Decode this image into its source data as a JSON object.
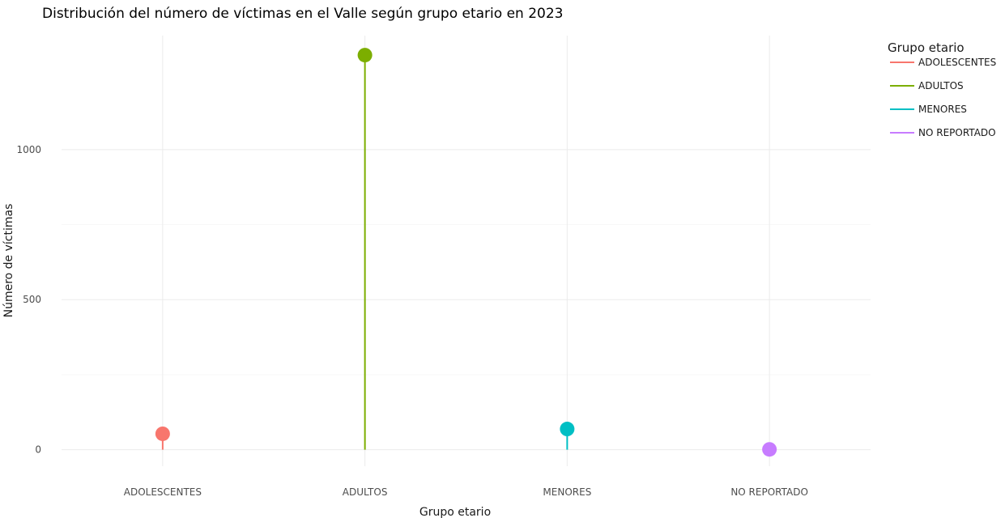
{
  "chart_data": {
    "type": "lollipop",
    "title": "Distribución del número de víctimas en el Valle según grupo etario en 2023",
    "xlabel": "Grupo etario",
    "ylabel": "Número de víctimas",
    "categories": [
      "ADOLESCENTES",
      "ADULTOS",
      "MENORES",
      "NO REPORTADO"
    ],
    "values": [
      53,
      1315,
      69,
      1
    ],
    "colors": [
      "#F8766D",
      "#7CAE00",
      "#00BFC4",
      "#C77CFF"
    ],
    "yticks": [
      0,
      500,
      1000
    ],
    "ylim": [
      -55,
      1380
    ],
    "grid": true,
    "legend": {
      "title": "Grupo etario",
      "position": "right",
      "items": [
        "ADOLESCENTES",
        "ADULTOS",
        "MENORES",
        "NO REPORTADO"
      ]
    }
  }
}
